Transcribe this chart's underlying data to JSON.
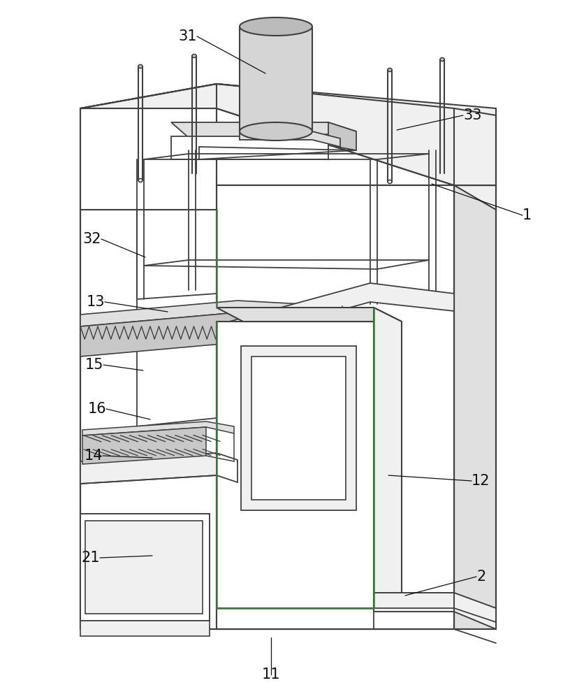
{
  "bg_color": "#ffffff",
  "line_color": "#404040",
  "green_color": "#3a7a3a",
  "figure_width": 8.26,
  "figure_height": 10.0,
  "dpi": 100
}
